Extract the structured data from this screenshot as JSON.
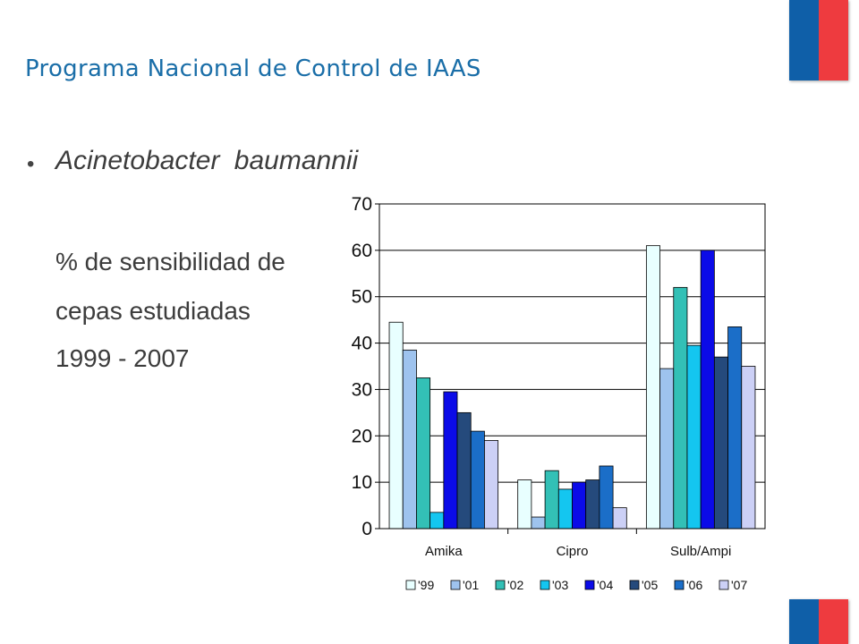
{
  "title": "Programa Nacional de Control de IAAS",
  "bullet": "Acinetobacter  baumannii",
  "subtitle_lines": [
    "% de sensibilidad  de",
    "cepas estudiadas",
    "1999 - 2007"
  ],
  "colors": {
    "title": "#1a6ea8",
    "flag_blue": "#0f5fa8",
    "flag_red": "#ee3b3f"
  },
  "chart_data": {
    "type": "bar",
    "categories": [
      "Amika",
      "Cipro",
      "Sulb/Ampi"
    ],
    "ylim": [
      0,
      70
    ],
    "yticks": [
      0,
      10,
      20,
      30,
      40,
      50,
      60,
      70
    ],
    "grid": true,
    "legend_position": "bottom",
    "series": [
      {
        "name": "'99",
        "color": "#e8ffff",
        "values": [
          44.5,
          10.5,
          61
        ]
      },
      {
        "name": "'01",
        "color": "#9ec3ee",
        "values": [
          38.5,
          2.5,
          34.5
        ]
      },
      {
        "name": "'02",
        "color": "#33c0b6",
        "values": [
          32.5,
          12.5,
          52
        ]
      },
      {
        "name": "'03",
        "color": "#14c6f0",
        "values": [
          3.5,
          8.5,
          39.5
        ]
      },
      {
        "name": "'04",
        "color": "#0b0be8",
        "values": [
          29.5,
          10,
          60
        ]
      },
      {
        "name": "'05",
        "color": "#254a7c",
        "values": [
          25,
          10.5,
          37
        ]
      },
      {
        "name": "'06",
        "color": "#1b6ec8",
        "values": [
          21,
          13.5,
          43.5
        ]
      },
      {
        "name": "'07",
        "color": "#ccd0f6",
        "values": [
          19,
          4.5,
          35
        ]
      }
    ]
  }
}
